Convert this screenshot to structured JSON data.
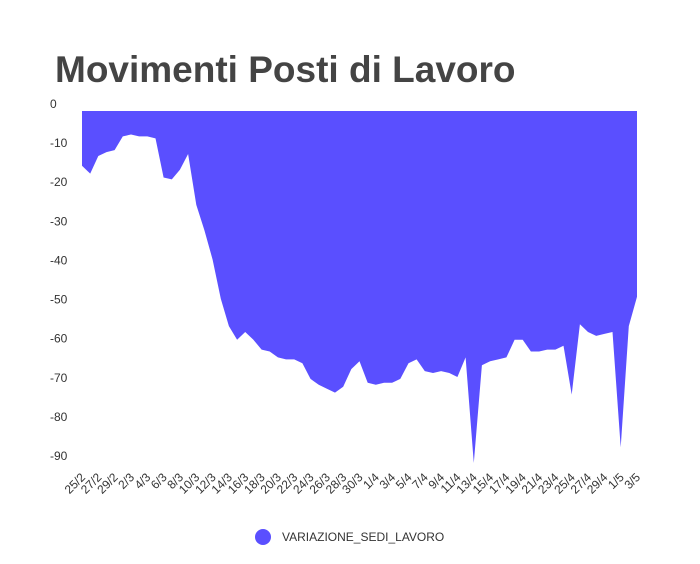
{
  "chart_data": {
    "type": "area",
    "title": "Movimenti Posti di Lavoro",
    "categories": [
      "25/2",
      null,
      "27/2",
      null,
      "29/2",
      null,
      "2/3",
      null,
      "4/3",
      null,
      "6/3",
      null,
      "8/3",
      null,
      "10/3",
      null,
      "12/3",
      null,
      "14/3",
      null,
      "16/3",
      null,
      "18/3",
      null,
      "20/3",
      null,
      "22/3",
      null,
      "24/3",
      null,
      "26/3",
      null,
      "28/3",
      null,
      "30/3",
      null,
      "1/4",
      null,
      "3/4",
      null,
      "5/4",
      null,
      "7/4",
      null,
      "9/4",
      null,
      "11/4",
      null,
      "13/4",
      null,
      "15/4",
      null,
      "17/4",
      null,
      "19/4",
      null,
      "21/4",
      null,
      "23/4",
      null,
      "25/4",
      null,
      "27/4",
      null,
      "29/4",
      null,
      "1/5",
      null,
      "3/5"
    ],
    "series": [
      {
        "name": "VARIAZIONE_SEDI_LAVORO",
        "color": "#5a4fff",
        "values": [
          -14,
          -16,
          -11.5,
          -10.5,
          -10,
          -6.5,
          -6,
          -6.5,
          -6.5,
          -7,
          -17,
          -17.5,
          -15,
          -11,
          -24,
          -30.5,
          -38,
          -48,
          -55,
          -58.5,
          -56.5,
          -58.5,
          -61,
          -61.5,
          -63,
          -63.5,
          -63.5,
          -64.5,
          -68.5,
          -70,
          -71,
          -72,
          -70.5,
          -66,
          -64,
          -69.5,
          -70,
          -69.5,
          -69.5,
          -68.5,
          -64.5,
          -63.5,
          -66.5,
          -67,
          -66.5,
          -67,
          -68,
          -63,
          -90,
          -65,
          -64,
          -63.5,
          -63,
          -58.5,
          -58.5,
          -61.5,
          -61.5,
          -61,
          -61,
          -60,
          -72.5,
          -54.5,
          -56.5,
          -57.5,
          -57,
          -56.5,
          -86,
          -55,
          -47.5
        ]
      }
    ],
    "ylim": [
      -90,
      0
    ],
    "yticks": [
      0,
      -10,
      -20,
      -30,
      -40,
      -50,
      -60,
      -70,
      -80,
      -90
    ],
    "legend": "bottom"
  }
}
